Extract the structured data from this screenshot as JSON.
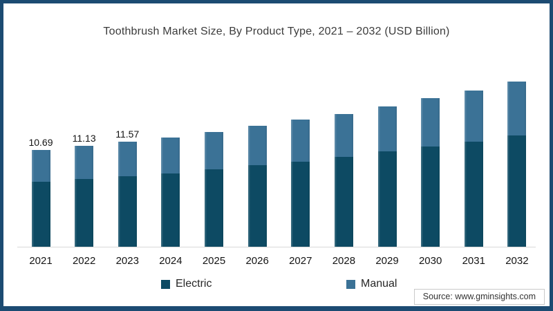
{
  "frame": {
    "border_color": "#1c4b72",
    "background": "#ffffff"
  },
  "chart_data": {
    "type": "bar",
    "stacked": true,
    "title": "Toothbrush Market Size, By Product Type, 2021 – 2032 (USD Billion)",
    "categories": [
      "2021",
      "2022",
      "2023",
      "2024",
      "2025",
      "2026",
      "2027",
      "2028",
      "2029",
      "2030",
      "2031",
      "2032"
    ],
    "series": [
      {
        "name": "Electric",
        "color": "#0d4a63",
        "values": [
          7.16,
          7.45,
          7.75,
          8.12,
          8.55,
          9.0,
          9.4,
          9.93,
          10.5,
          11.05,
          11.6,
          12.3
        ]
      },
      {
        "name": "Manual",
        "color": "#3b7296",
        "values": [
          3.53,
          3.68,
          3.82,
          3.95,
          4.1,
          4.35,
          4.65,
          4.75,
          4.95,
          5.35,
          5.65,
          5.9
        ]
      }
    ],
    "totals": [
      10.69,
      11.13,
      11.57,
      12.07,
      12.65,
      13.35,
      14.05,
      14.68,
      15.45,
      16.4,
      17.25,
      18.2
    ],
    "value_labels": [
      "10.69",
      "11.13",
      "11.57",
      "",
      "",
      "",
      "",
      "",
      "",
      "",
      "",
      ""
    ],
    "ylim": [
      0,
      19.6
    ],
    "grid": false,
    "legend_position": "bottom",
    "xlabel": "",
    "ylabel": ""
  },
  "source": {
    "text": "Source: www.gminsights.com"
  }
}
